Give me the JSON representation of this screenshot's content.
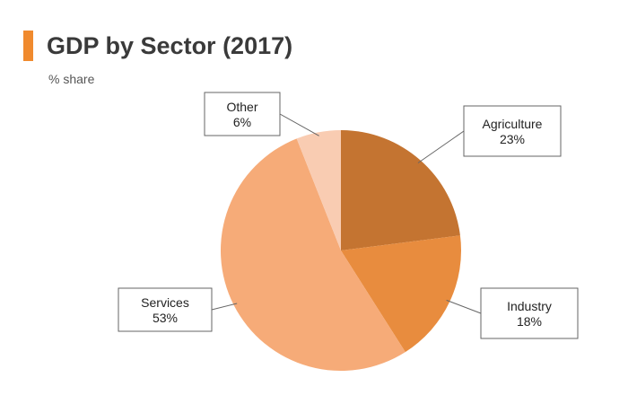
{
  "header": {
    "title": "GDP by Sector (2017)",
    "subtitle": "% share",
    "accent_color": "#f08a2e"
  },
  "chart_data": {
    "type": "pie",
    "title": "GDP by Sector (2017)",
    "subtitle": "% share",
    "start_angle_deg": 0,
    "direction": "clockwise",
    "slices": [
      {
        "label": "Agriculture",
        "value": 23,
        "value_label": "23%",
        "color": "#c47431"
      },
      {
        "label": "Industry",
        "value": 18,
        "value_label": "18%",
        "color": "#e88c3e"
      },
      {
        "label": "Services",
        "value": 53,
        "value_label": "53%",
        "color": "#f6ab78"
      },
      {
        "label": "Other",
        "value": 6,
        "value_label": "6%",
        "color": "#f9ccb2"
      }
    ]
  }
}
